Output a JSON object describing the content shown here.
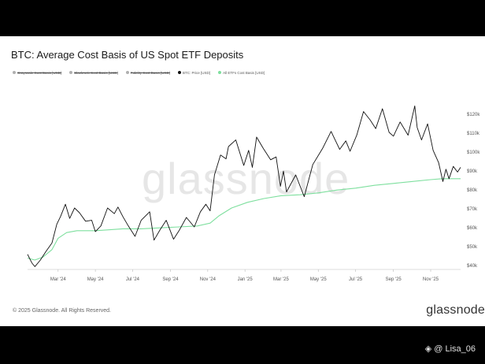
{
  "title": "BTC: Average Cost Basis of US Spot ETF Deposits",
  "legend": [
    {
      "label": "Grayscale Cost Basis [USD]",
      "color": "#b0b0b0"
    },
    {
      "label": "Blackrock Cost Basis [USD]",
      "color": "#b0b0b0"
    },
    {
      "label": "Fidelity Cost Basis [USD]",
      "color": "#b0b0b0"
    },
    {
      "label": "BTC: Price [USD]",
      "color": "#111111"
    },
    {
      "label": "All ETFs Cost Basis [USD]",
      "color": "#7edf9e"
    }
  ],
  "watermark": "glassnode",
  "footer": "© 2025 Glassnode. All Rights Reserved.",
  "brand": "glassnode",
  "credit": "@ Lisa_06",
  "chart_data": {
    "type": "line",
    "title": "BTC: Average Cost Basis of US Spot ETF Deposits",
    "xlabel": "",
    "ylabel": "",
    "x_ticks": [
      "Mar '24",
      "May '24",
      "Jul '24",
      "Sep '24",
      "Nov '24",
      "Jan '25",
      "Mar '25",
      "May '25",
      "Jul '25",
      "Sep '25",
      "Nov '25"
    ],
    "y_ticks": [
      "$40k",
      "$50k",
      "$60k",
      "$70k",
      "$80k",
      "$90k",
      "$100k",
      "$110k",
      "$120k"
    ],
    "ylim": [
      38000,
      128000
    ],
    "xlim": [
      "2024-01-11",
      "2025-12-20"
    ],
    "legend_position": "top",
    "series": [
      {
        "name": "BTC: Price [USD]",
        "color": "#111111",
        "points": [
          [
            "2024-01-11",
            46000
          ],
          [
            "2024-01-18",
            41500
          ],
          [
            "2024-01-23",
            39500
          ],
          [
            "2024-02-01",
            43000
          ],
          [
            "2024-02-10",
            47500
          ],
          [
            "2024-02-20",
            52000
          ],
          [
            "2024-02-28",
            62000
          ],
          [
            "2024-03-05",
            66000
          ],
          [
            "2024-03-13",
            72500
          ],
          [
            "2024-03-20",
            65000
          ],
          [
            "2024-03-28",
            70500
          ],
          [
            "2024-04-05",
            68000
          ],
          [
            "2024-04-15",
            63500
          ],
          [
            "2024-04-25",
            64000
          ],
          [
            "2024-05-01",
            58000
          ],
          [
            "2024-05-10",
            61000
          ],
          [
            "2024-05-21",
            70500
          ],
          [
            "2024-06-01",
            67500
          ],
          [
            "2024-06-07",
            71000
          ],
          [
            "2024-06-15",
            66000
          ],
          [
            "2024-06-24",
            61000
          ],
          [
            "2024-07-05",
            55500
          ],
          [
            "2024-07-15",
            64000
          ],
          [
            "2024-07-29",
            68500
          ],
          [
            "2024-08-05",
            53500
          ],
          [
            "2024-08-15",
            59000
          ],
          [
            "2024-08-25",
            64000
          ],
          [
            "2024-09-06",
            54000
          ],
          [
            "2024-09-15",
            58500
          ],
          [
            "2024-09-27",
            65500
          ],
          [
            "2024-10-10",
            60500
          ],
          [
            "2024-10-20",
            68500
          ],
          [
            "2024-10-29",
            72500
          ],
          [
            "2024-11-05",
            69000
          ],
          [
            "2024-11-12",
            88000
          ],
          [
            "2024-11-22",
            98500
          ],
          [
            "2024-12-01",
            96500
          ],
          [
            "2024-12-05",
            103000
          ],
          [
            "2024-12-17",
            106500
          ],
          [
            "2024-12-30",
            93000
          ],
          [
            "2025-01-07",
            101000
          ],
          [
            "2025-01-13",
            92000
          ],
          [
            "2025-01-20",
            108000
          ],
          [
            "2025-01-31",
            102000
          ],
          [
            "2025-02-12",
            96000
          ],
          [
            "2025-02-21",
            97500
          ],
          [
            "2025-02-28",
            82000
          ],
          [
            "2025-03-05",
            90000
          ],
          [
            "2025-03-10",
            79000
          ],
          [
            "2025-03-25",
            88000
          ],
          [
            "2025-04-08",
            76500
          ],
          [
            "2025-04-22",
            93500
          ],
          [
            "2025-05-08",
            102000
          ],
          [
            "2025-05-22",
            111000
          ],
          [
            "2025-06-05",
            101500
          ],
          [
            "2025-06-15",
            106000
          ],
          [
            "2025-06-22",
            100500
          ],
          [
            "2025-07-03",
            109000
          ],
          [
            "2025-07-14",
            121500
          ],
          [
            "2025-07-25",
            117000
          ],
          [
            "2025-08-03",
            112500
          ],
          [
            "2025-08-14",
            123000
          ],
          [
            "2025-08-25",
            110500
          ],
          [
            "2025-09-01",
            108500
          ],
          [
            "2025-09-12",
            116000
          ],
          [
            "2025-09-25",
            109000
          ],
          [
            "2025-10-06",
            124500
          ],
          [
            "2025-10-10",
            113000
          ],
          [
            "2025-10-17",
            106500
          ],
          [
            "2025-10-27",
            115000
          ],
          [
            "2025-11-05",
            101000
          ],
          [
            "2025-11-14",
            94500
          ],
          [
            "2025-11-21",
            84500
          ],
          [
            "2025-11-26",
            91000
          ],
          [
            "2025-12-01",
            86000
          ],
          [
            "2025-12-08",
            92500
          ],
          [
            "2025-12-15",
            89500
          ],
          [
            "2025-12-20",
            92000
          ]
        ]
      },
      {
        "name": "All ETFs Cost Basis [USD]",
        "color": "#7edf9e",
        "points": [
          [
            "2024-01-11",
            44000
          ],
          [
            "2024-01-23",
            43000
          ],
          [
            "2024-02-05",
            44500
          ],
          [
            "2024-02-20",
            48500
          ],
          [
            "2024-03-01",
            54500
          ],
          [
            "2024-03-15",
            57500
          ],
          [
            "2024-04-01",
            58500
          ],
          [
            "2024-05-01",
            58500
          ],
          [
            "2024-06-15",
            59500
          ],
          [
            "2024-07-15",
            59500
          ],
          [
            "2024-08-15",
            60000
          ],
          [
            "2024-09-15",
            60500
          ],
          [
            "2024-10-15",
            61000
          ],
          [
            "2024-11-05",
            62500
          ],
          [
            "2024-11-20",
            66500
          ],
          [
            "2024-12-10",
            70500
          ],
          [
            "2025-01-05",
            73500
          ],
          [
            "2025-02-01",
            75500
          ],
          [
            "2025-03-01",
            77000
          ],
          [
            "2025-04-01",
            77500
          ],
          [
            "2025-05-01",
            78500
          ],
          [
            "2025-06-01",
            80000
          ],
          [
            "2025-07-01",
            81000
          ],
          [
            "2025-08-01",
            82500
          ],
          [
            "2025-09-01",
            83500
          ],
          [
            "2025-10-01",
            84500
          ],
          [
            "2025-11-01",
            85500
          ],
          [
            "2025-11-20",
            86000
          ],
          [
            "2025-12-20",
            86000
          ]
        ]
      }
    ]
  }
}
